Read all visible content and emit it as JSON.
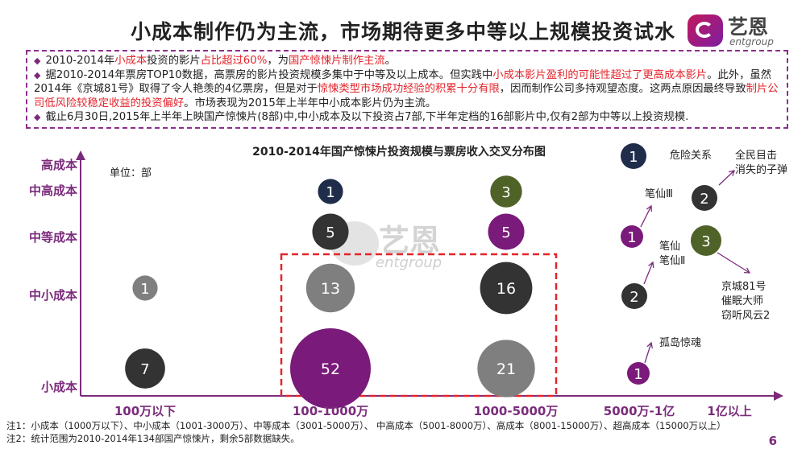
{
  "title": "小成本制作仍为主流，市场期待更多中等以上规模投资试水",
  "logo": {
    "cn": "艺恩",
    "en": "entgroup"
  },
  "bullets": [
    {
      "parts": [
        {
          "t": "2010-2014年",
          "hl": false
        },
        {
          "t": "小成本",
          "hl": true
        },
        {
          "t": "投资的影片",
          "hl": false
        },
        {
          "t": "占比超过60%",
          "hl": true
        },
        {
          "t": "，为",
          "hl": false
        },
        {
          "t": "国产惊悚片制作主流",
          "hl": true
        },
        {
          "t": "。",
          "hl": false
        }
      ]
    },
    {
      "parts": [
        {
          "t": "据2010-2014年票房TOP10数据，高票房的影片投资规模多集中于中等及以上成本。但实践中",
          "hl": false
        },
        {
          "t": "小成本影片盈利的可能性超过了更高成本影片",
          "hl": true
        },
        {
          "t": "。此外，虽然2014年《京城81号》取得了令人艳羡的4亿票房，但是对于",
          "hl": false
        },
        {
          "t": "惊悚类型市场成功经验的积累十分有限",
          "hl": true
        },
        {
          "t": "，因而制作公司多持观望态度。这两点原因最终导致",
          "hl": false
        },
        {
          "t": "制片公司低风险较稳定收益的投资偏好",
          "hl": true
        },
        {
          "t": "。市场表现为2015年上半年中小成本影片仍为主流。",
          "hl": false
        }
      ]
    },
    {
      "parts": [
        {
          "t": "截止6月30日,2015年上半年上映国产惊悚片(8部)中,中小成本及以下投资占7部,下半年定档的16部影片中,仅有2部为中等以上投资规模.",
          "hl": false
        }
      ]
    }
  ],
  "watermark": {
    "cn": "艺恩",
    "en": "entgroup"
  },
  "chart_data": {
    "type": "scatter",
    "title": "2010-2014年国产惊悚片投资规模与票房收入交叉分布图",
    "unit": "单位：部",
    "x_categories": [
      "100万以下",
      "100-1000万",
      "1000-5000万",
      "5000万-1亿",
      "1亿以上"
    ],
    "y_categories": [
      "小成本",
      "中小成本",
      "中等成本",
      "中高成本",
      "高成本"
    ],
    "colors": {
      "dark": "#333333",
      "gray": "#7f7f7f",
      "purple": "#7a1a7a",
      "olive": "#4f6228",
      "navy": "#1f2d4a",
      "box": "#e3242b",
      "axis": "#7b2b7b"
    },
    "points": [
      {
        "x": "100万以下",
        "y": "小成本",
        "value": 7,
        "color": "dark"
      },
      {
        "x": "100万以下",
        "y": "中小成本",
        "value": 1,
        "color": "gray"
      },
      {
        "x": "100-1000万",
        "y": "小成本",
        "value": 52,
        "color": "purple"
      },
      {
        "x": "100-1000万",
        "y": "中小成本",
        "value": 13,
        "color": "gray"
      },
      {
        "x": "100-1000万",
        "y": "中等成本",
        "value": 5,
        "color": "dark"
      },
      {
        "x": "100-1000万",
        "y": "中高成本",
        "value": 1,
        "color": "navy"
      },
      {
        "x": "1000-5000万",
        "y": "小成本",
        "value": 21,
        "color": "gray"
      },
      {
        "x": "1000-5000万",
        "y": "中小成本",
        "value": 16,
        "color": "dark"
      },
      {
        "x": "1000-5000万",
        "y": "中等成本",
        "value": 5,
        "color": "purple"
      },
      {
        "x": "1000-5000万",
        "y": "中高成本",
        "value": 3,
        "color": "olive"
      }
    ],
    "side_annotations": [
      {
        "value": 1,
        "color": "navy",
        "films": [
          "危险关系"
        ]
      },
      {
        "value": 2,
        "color": "dark",
        "films": [
          "全民目击",
          "消失的子弹"
        ]
      },
      {
        "value": 1,
        "color": "purple",
        "films": [
          "笔仙Ⅲ"
        ]
      },
      {
        "value": 3,
        "color": "olive",
        "films": [
          "京城81号",
          "催眠大师",
          "窃听风云2"
        ]
      },
      {
        "value": 2,
        "color": "dark",
        "films": [
          "笔仙",
          "笔仙Ⅱ"
        ]
      },
      {
        "value": 1,
        "color": "purple",
        "films": [
          "孤岛惊魂"
        ]
      }
    ]
  },
  "notes": [
    "注1：小成本（1000万以下）、中小成本（1001-3000万）、中等成本（3001-5000万）、 中高成本（5001-8000万）、高成本（8001-15000万）、超高成本（15000万以上）",
    "注2：统计范围为2010-2014年134部国产惊悚片，剩余5部数据缺失。"
  ],
  "page_number": "6"
}
